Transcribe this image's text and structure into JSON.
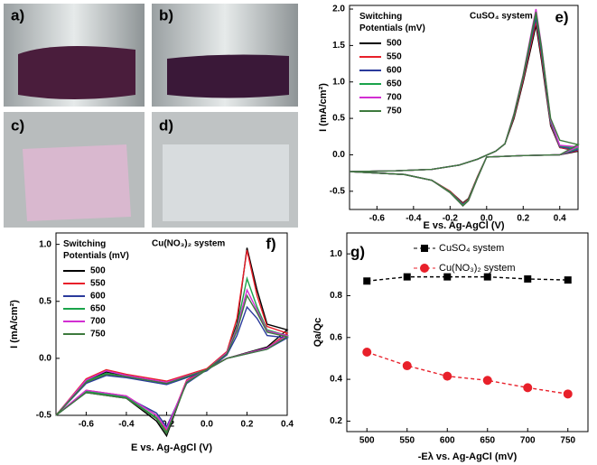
{
  "photos": {
    "labels": [
      "a)",
      "b)",
      "c)",
      "d)"
    ]
  },
  "chart_data": [
    {
      "type": "line",
      "panel": "e)",
      "title": "CuSO₄ system",
      "legend_title": "Switching Potentials (mV)",
      "x_label": "E vs. Ag-AgCl (V)",
      "y_label": "I (mA/cm²)",
      "xlim": [
        -0.75,
        0.5
      ],
      "ylim": [
        -0.75,
        2.05
      ],
      "xticks": [
        -0.6,
        -0.4,
        -0.2,
        {
          "value": 0,
          "label": "0.0"
        },
        0.2,
        0.4
      ],
      "yticks": [
        -0.5,
        {
          "value": 0,
          "label": "0.0"
        },
        0.5,
        {
          "value": 1,
          "label": "1.0"
        },
        1.5,
        {
          "value": 2,
          "label": "2.0"
        }
      ],
      "x": [
        -0.75,
        -0.5,
        -0.3,
        -0.15,
        -0.05,
        0.05,
        0.1,
        0.15,
        0.2,
        0.25,
        0.27,
        0.3,
        0.35,
        0.4,
        0.5,
        0.4,
        0.2,
        0.0,
        -0.05,
        -0.1,
        -0.13,
        -0.2,
        -0.3,
        -0.45,
        -0.75
      ],
      "series": [
        {
          "name": "500",
          "color": "#000000",
          "values": [
            -0.23,
            -0.22,
            -0.2,
            -0.14,
            -0.06,
            0.05,
            0.15,
            0.5,
            1.0,
            1.55,
            1.78,
            1.3,
            0.4,
            0.1,
            0.05,
            0.0,
            -0.01,
            -0.03,
            -0.3,
            -0.6,
            -0.66,
            -0.5,
            -0.35,
            -0.27,
            -0.23
          ]
        },
        {
          "name": "550",
          "color": "#e8202a",
          "values": [
            -0.23,
            -0.22,
            -0.2,
            -0.14,
            -0.06,
            0.05,
            0.15,
            0.52,
            1.03,
            1.6,
            1.83,
            1.35,
            0.42,
            0.1,
            0.06,
            0.0,
            -0.01,
            -0.03,
            -0.3,
            -0.61,
            -0.67,
            -0.5,
            -0.35,
            -0.27,
            -0.23
          ]
        },
        {
          "name": "600",
          "color": "#2a3a9c",
          "values": [
            -0.23,
            -0.22,
            -0.2,
            -0.14,
            -0.06,
            0.05,
            0.15,
            0.54,
            1.06,
            1.65,
            1.88,
            1.4,
            0.44,
            0.11,
            0.07,
            0.0,
            -0.01,
            -0.03,
            -0.31,
            -0.62,
            -0.68,
            -0.51,
            -0.35,
            -0.27,
            -0.23
          ]
        },
        {
          "name": "650",
          "color": "#1aa34a",
          "values": [
            -0.23,
            -0.22,
            -0.2,
            -0.14,
            -0.06,
            0.05,
            0.15,
            0.55,
            1.08,
            1.7,
            1.93,
            1.45,
            0.46,
            0.12,
            0.09,
            0.0,
            -0.01,
            -0.03,
            -0.31,
            -0.62,
            -0.69,
            -0.51,
            -0.35,
            -0.27,
            -0.23
          ]
        },
        {
          "name": "700",
          "color": "#d22fd2",
          "values": [
            -0.23,
            -0.22,
            -0.2,
            -0.14,
            -0.06,
            0.05,
            0.15,
            0.57,
            1.1,
            1.75,
            2.0,
            1.5,
            0.48,
            0.13,
            0.11,
            0.0,
            -0.01,
            -0.03,
            -0.32,
            -0.63,
            -0.7,
            -0.52,
            -0.35,
            -0.27,
            -0.23
          ]
        },
        {
          "name": "750",
          "color": "#3d7a3d",
          "values": [
            -0.23,
            -0.22,
            -0.2,
            -0.14,
            -0.06,
            0.05,
            0.15,
            0.56,
            1.09,
            1.72,
            1.96,
            1.48,
            0.5,
            0.2,
            0.14,
            0.0,
            -0.01,
            -0.03,
            -0.32,
            -0.63,
            -0.7,
            -0.52,
            -0.35,
            -0.27,
            -0.23
          ]
        }
      ]
    },
    {
      "type": "line",
      "panel": "f)",
      "title": "Cu(NO₃)₂ system",
      "legend_title": "Switching Potentials (mV)",
      "x_label": "E vs. Ag-AgCl (V)",
      "y_label": "I (mA/cm²)",
      "xlim": [
        -0.75,
        0.4
      ],
      "ylim": [
        -0.5,
        1.1
      ],
      "xticks": [
        -0.6,
        -0.4,
        -0.2,
        {
          "value": 0,
          "label": "0.0"
        },
        0.2,
        0.4
      ],
      "yticks": [
        -0.5,
        {
          "value": 0,
          "label": "0.0"
        },
        0.5,
        {
          "value": 1,
          "label": "1.0"
        }
      ],
      "x": [
        -0.75,
        -0.6,
        -0.5,
        -0.4,
        -0.2,
        0.0,
        0.1,
        0.15,
        0.2,
        0.25,
        0.3,
        0.4,
        0.3,
        0.1,
        0.0,
        -0.1,
        -0.2,
        -0.25,
        -0.4,
        -0.6,
        -0.75
      ],
      "series": [
        {
          "name": "500",
          "color": "#000000",
          "values": [
            -0.5,
            -0.2,
            -0.12,
            -0.15,
            -0.22,
            -0.1,
            0.05,
            0.3,
            0.97,
            0.6,
            0.3,
            0.25,
            0.1,
            0.0,
            -0.1,
            -0.2,
            -0.68,
            -0.55,
            -0.35,
            -0.3,
            -0.5
          ]
        },
        {
          "name": "550",
          "color": "#e8202a",
          "values": [
            -0.5,
            -0.18,
            -0.1,
            -0.14,
            -0.2,
            -0.09,
            0.06,
            0.35,
            0.95,
            0.55,
            0.28,
            0.22,
            0.09,
            0.0,
            -0.09,
            -0.19,
            -0.63,
            -0.5,
            -0.33,
            -0.28,
            -0.5
          ]
        },
        {
          "name": "600",
          "color": "#2a3a9c",
          "values": [
            -0.5,
            -0.22,
            -0.15,
            -0.17,
            -0.23,
            -0.11,
            0.03,
            0.2,
            0.45,
            0.35,
            0.2,
            0.18,
            0.08,
            0.0,
            -0.1,
            -0.22,
            -0.6,
            -0.48,
            -0.34,
            -0.3,
            -0.5
          ]
        },
        {
          "name": "650",
          "color": "#1aa34a",
          "values": [
            -0.5,
            -0.2,
            -0.13,
            -0.16,
            -0.22,
            -0.1,
            0.05,
            0.28,
            0.7,
            0.45,
            0.25,
            0.2,
            0.09,
            0.0,
            -0.1,
            -0.21,
            -0.65,
            -0.52,
            -0.34,
            -0.29,
            -0.5
          ]
        },
        {
          "name": "700",
          "color": "#d22fd2",
          "values": [
            -0.5,
            -0.19,
            -0.11,
            -0.15,
            -0.21,
            -0.1,
            0.05,
            0.26,
            0.6,
            0.42,
            0.24,
            0.2,
            0.09,
            0.0,
            -0.1,
            -0.2,
            -0.62,
            -0.5,
            -0.33,
            -0.28,
            -0.5
          ]
        },
        {
          "name": "750",
          "color": "#3d7a3d",
          "values": [
            -0.5,
            -0.21,
            -0.14,
            -0.16,
            -0.22,
            -0.1,
            0.04,
            0.24,
            0.55,
            0.4,
            0.23,
            0.19,
            0.08,
            0.0,
            -0.1,
            -0.21,
            -0.66,
            -0.53,
            -0.35,
            -0.3,
            -0.5
          ]
        }
      ]
    },
    {
      "type": "scatter-line",
      "panel": "g)",
      "x_label": "-Eλ vs. Ag-AgCl (mV)",
      "y_label": "Qa/Qc",
      "xlim": [
        475,
        775
      ],
      "ylim": [
        0.15,
        1.1
      ],
      "xticks": [
        500,
        550,
        600,
        650,
        700,
        750
      ],
      "yticks": [
        0.2,
        0.4,
        0.6,
        0.8,
        {
          "value": 1,
          "label": "1.0"
        }
      ],
      "x": [
        500,
        550,
        600,
        650,
        700,
        750
      ],
      "series": [
        {
          "name": "CuSO₄ system",
          "color": "#000000",
          "marker": "square",
          "values": [
            0.87,
            0.89,
            0.89,
            0.89,
            0.88,
            0.875
          ]
        },
        {
          "name": "Cu(NO₃)₂ system",
          "color": "#e8202a",
          "marker": "circle",
          "values": [
            0.53,
            0.465,
            0.415,
            0.395,
            0.36,
            0.33
          ]
        }
      ]
    }
  ]
}
